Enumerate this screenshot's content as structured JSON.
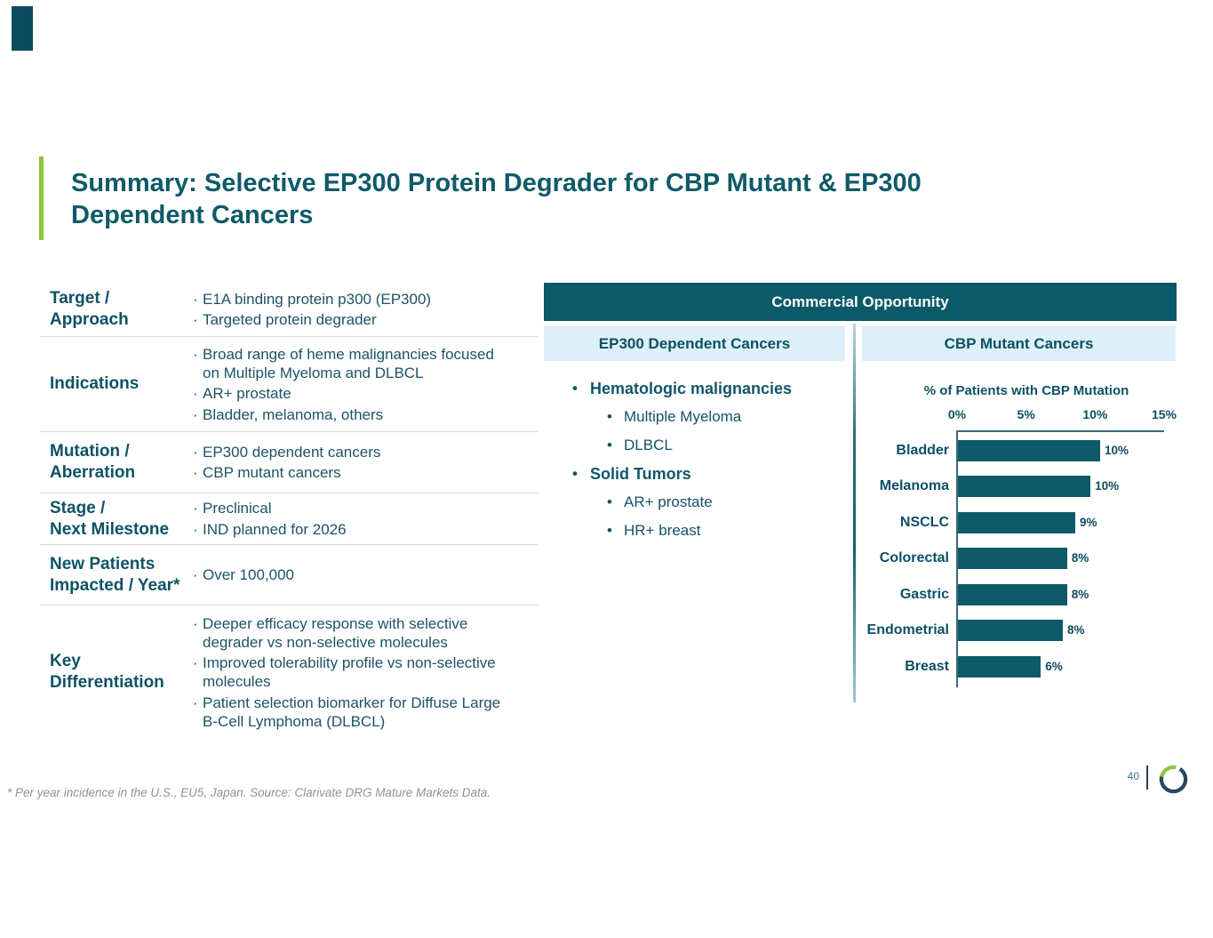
{
  "slide": {
    "title_line1": "Summary: Selective EP300 Protein Degrader for CBP Mutant & EP300",
    "title_line2": "Dependent Cancers",
    "footnote": "* Per year incidence in the U.S., EU5, Japan. Source: Clarivate DRG Mature Markets Data.",
    "page_number": "40"
  },
  "icons": {
    "table_bullet": "·",
    "list_bullet": "•",
    "logo": "ring-logo"
  },
  "colors": {
    "teal_dark": "#0b5a68",
    "bar_teal": "#0e5a68",
    "light_blue_header": "#ddf0f9",
    "accent_green": "#8dc63f",
    "logo_navy": "#2b4660",
    "title_teal": "#0f5a68",
    "body_text": "#1d5266",
    "footnote_gray": "#8c929a"
  },
  "profile_table": {
    "rows": [
      {
        "label": [
          "Target /",
          "Approach"
        ],
        "bullets": [
          [
            "E1A binding protein p300 (EP300)"
          ],
          [
            "Targeted protein degrader"
          ]
        ]
      },
      {
        "label": [
          "Indications"
        ],
        "bullets": [
          [
            "Broad range of heme malignancies focused",
            "on Multiple Myeloma and DLBCL"
          ],
          [
            "AR+ prostate"
          ],
          [
            "Bladder, melanoma, others"
          ]
        ]
      },
      {
        "label": [
          "Mutation /",
          "Aberration"
        ],
        "bullets": [
          [
            "EP300 dependent cancers"
          ],
          [
            "CBP mutant cancers"
          ]
        ]
      },
      {
        "label": [
          "Stage /",
          "Next Milestone"
        ],
        "bullets": [
          [
            "Preclinical"
          ],
          [
            "IND planned for 2026"
          ]
        ]
      },
      {
        "label": [
          "New Patients",
          "Impacted / Year*"
        ],
        "bullets": [
          [
            "Over 100,000"
          ]
        ]
      },
      {
        "label": [
          "Key",
          "Differentiation"
        ],
        "bullets": [
          [
            "Deeper efficacy response with selective",
            "degrader vs non-selective molecules"
          ],
          [
            "Improved tolerability profile vs non-selective",
            "molecules"
          ],
          [
            "Patient selection biomarker for Diffuse Large",
            "B-Cell Lymphoma (DLBCL)"
          ]
        ]
      }
    ]
  },
  "commercial": {
    "header": "Commercial Opportunity",
    "left_header": "EP300 Dependent Cancers",
    "right_header": "CBP Mutant Cancers",
    "ep300_items": [
      {
        "level": 1,
        "text": "Hematologic malignancies"
      },
      {
        "level": 2,
        "text": "Multiple Myeloma"
      },
      {
        "level": 2,
        "text": "DLBCL"
      },
      {
        "level": 1,
        "text": "Solid Tumors"
      },
      {
        "level": 2,
        "text": "AR+ prostate"
      },
      {
        "level": 2,
        "text": "HR+ breast"
      }
    ]
  },
  "chart_data": {
    "type": "bar",
    "orientation": "horizontal",
    "title": "% of Patients with CBP Mutation",
    "categories": [
      "Bladder",
      "Melanoma",
      "NSCLC",
      "Colorectal",
      "Gastric",
      "Endometrial",
      "Breast"
    ],
    "values": [
      10.3,
      9.6,
      8.5,
      7.9,
      7.9,
      7.6,
      6.0
    ],
    "value_labels": [
      "10%",
      "10%",
      "9%",
      "8%",
      "8%",
      "8%",
      "6%"
    ],
    "x_ticks": [
      "0%",
      "5%",
      "10%",
      "15%"
    ],
    "xlim": [
      0,
      15
    ],
    "grid": false,
    "legend": false,
    "bar_color": "#0e5a68"
  }
}
